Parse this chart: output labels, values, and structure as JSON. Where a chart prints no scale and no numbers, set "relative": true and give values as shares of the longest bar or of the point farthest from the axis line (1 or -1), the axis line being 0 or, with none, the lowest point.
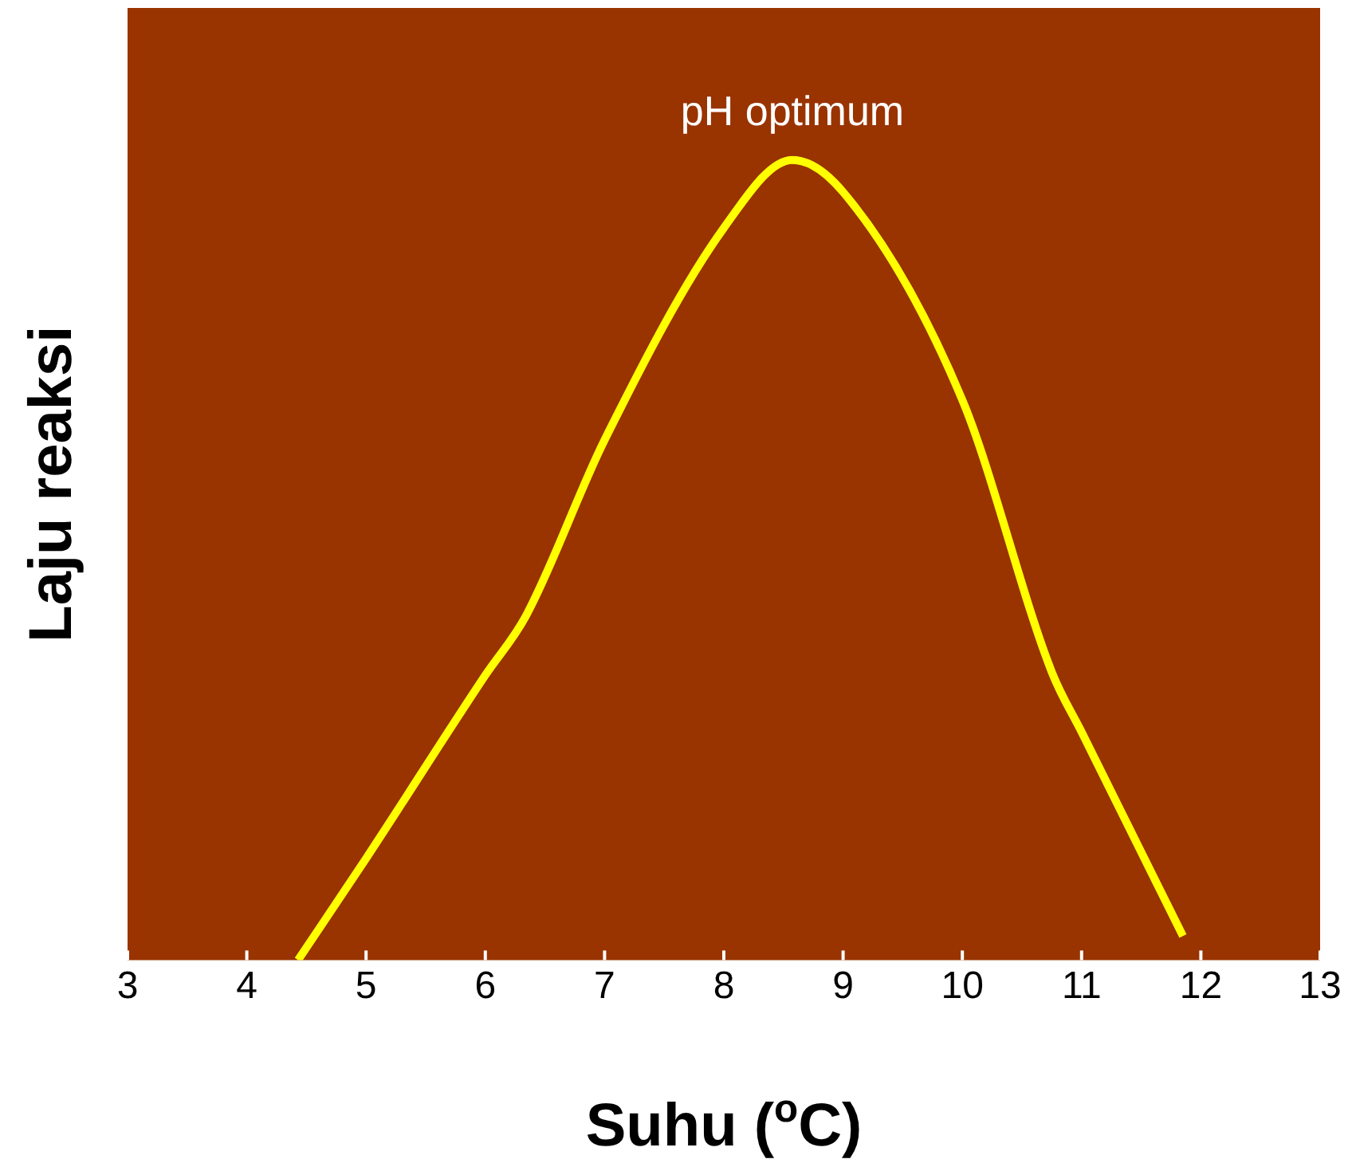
{
  "chart_data": {
    "type": "line",
    "relative": true,
    "xlabel": "Suhu ($^{o}$C)",
    "ylabel": "Laju reaksi",
    "x": [
      4.43,
      5,
      6,
      6.34,
      7,
      8,
      8.575,
      9,
      10,
      10.75,
      11,
      11.85
    ],
    "series": [
      {
        "color": "#ffff00",
        "values": [
          0,
          0.127,
          0.356,
          0.43,
          0.65,
          0.915,
          1,
          0.96,
          0.7,
          0.36,
          0.285,
          0.03
        ]
      }
    ],
    "xlim": [
      3,
      13
    ],
    "xticks": [
      3,
      4,
      5,
      6,
      7,
      8,
      9,
      10,
      11,
      12,
      13
    ],
    "annotations": [
      {
        "text": "pH optimum",
        "x": 8.575,
        "y": 1
      }
    ],
    "grid": false,
    "legend": false,
    "marker": "none",
    "line_style": "solid"
  }
}
